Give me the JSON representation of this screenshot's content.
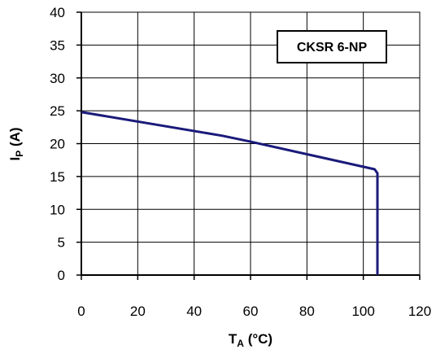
{
  "chart_data": {
    "type": "line",
    "title": "",
    "xlabel": {
      "main": "T",
      "sub": "A",
      "unit": " (°C)"
    },
    "ylabel": {
      "main": "I",
      "sub": "P",
      "unit": "  (A)"
    },
    "xlim": [
      0,
      120
    ],
    "ylim": [
      0,
      40
    ],
    "x_ticks": [
      0,
      20,
      40,
      60,
      80,
      100,
      120
    ],
    "y_ticks": [
      0,
      5,
      10,
      15,
      20,
      25,
      30,
      35,
      40
    ],
    "x_tick_labels": [
      "0",
      "20",
      "40",
      "60",
      "80",
      "100",
      "120"
    ],
    "y_tick_labels": [
      "0",
      "5",
      "10",
      "15",
      "20",
      "25",
      "30",
      "35",
      "40"
    ],
    "grid": true,
    "legend": "none",
    "annotation": "CKSR 6-NP",
    "series": [
      {
        "color": "#1a1a7a",
        "x": [
          0,
          50,
          60,
          104,
          105,
          105
        ],
        "y": [
          24.8,
          21.2,
          20.3,
          16.1,
          15.5,
          0
        ]
      }
    ]
  }
}
